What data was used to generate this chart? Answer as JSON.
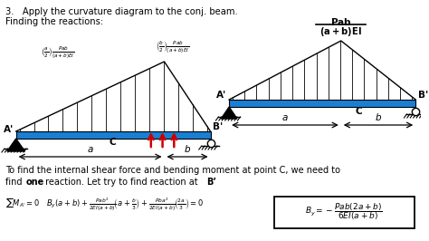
{
  "bg_color": "#ffffff",
  "fig_width": 4.74,
  "fig_height": 2.66,
  "dpi": 100,
  "beam_color": "#1a7fd4",
  "arrow_color": "#cc0000",
  "line_color": "#000000",
  "title1": "3.   Apply the curvature diagram to the conj. beam.",
  "title2": "Finding the reactions:",
  "left_label_a": "$\\left(\\frac{a}{2}\\right)\\frac{Pab}{(a+b)EI}$",
  "left_label_b": "$\\left(\\frac{b}{2}\\right)\\frac{Pab}{(a+b)EI}$",
  "top_right_label_num": "$Pab$",
  "top_right_label_den": "$(a+b)EI$",
  "text1": "To find the internal shear force and bending moment at point C, we need to",
  "text2a": "find ",
  "text2b": "one",
  "text2c": " reaction. Let try to find reaction at ",
  "text2d": "B’",
  "eq": "$\\sum M_{A^{\\prime}} = 0 \\quad B_y(a+b)+\\frac{Pab^2}{2EI(a+b)}\\!\\left(a+\\frac{b}{3}\\right)+\\frac{Pba^2}{2EI(a+b)}\\!\\left(\\frac{2a}{3}\\right)=0$",
  "box_eq": "$B_y = -\\dfrac{Pab(2a+b)}{6EI(a+b)}$"
}
